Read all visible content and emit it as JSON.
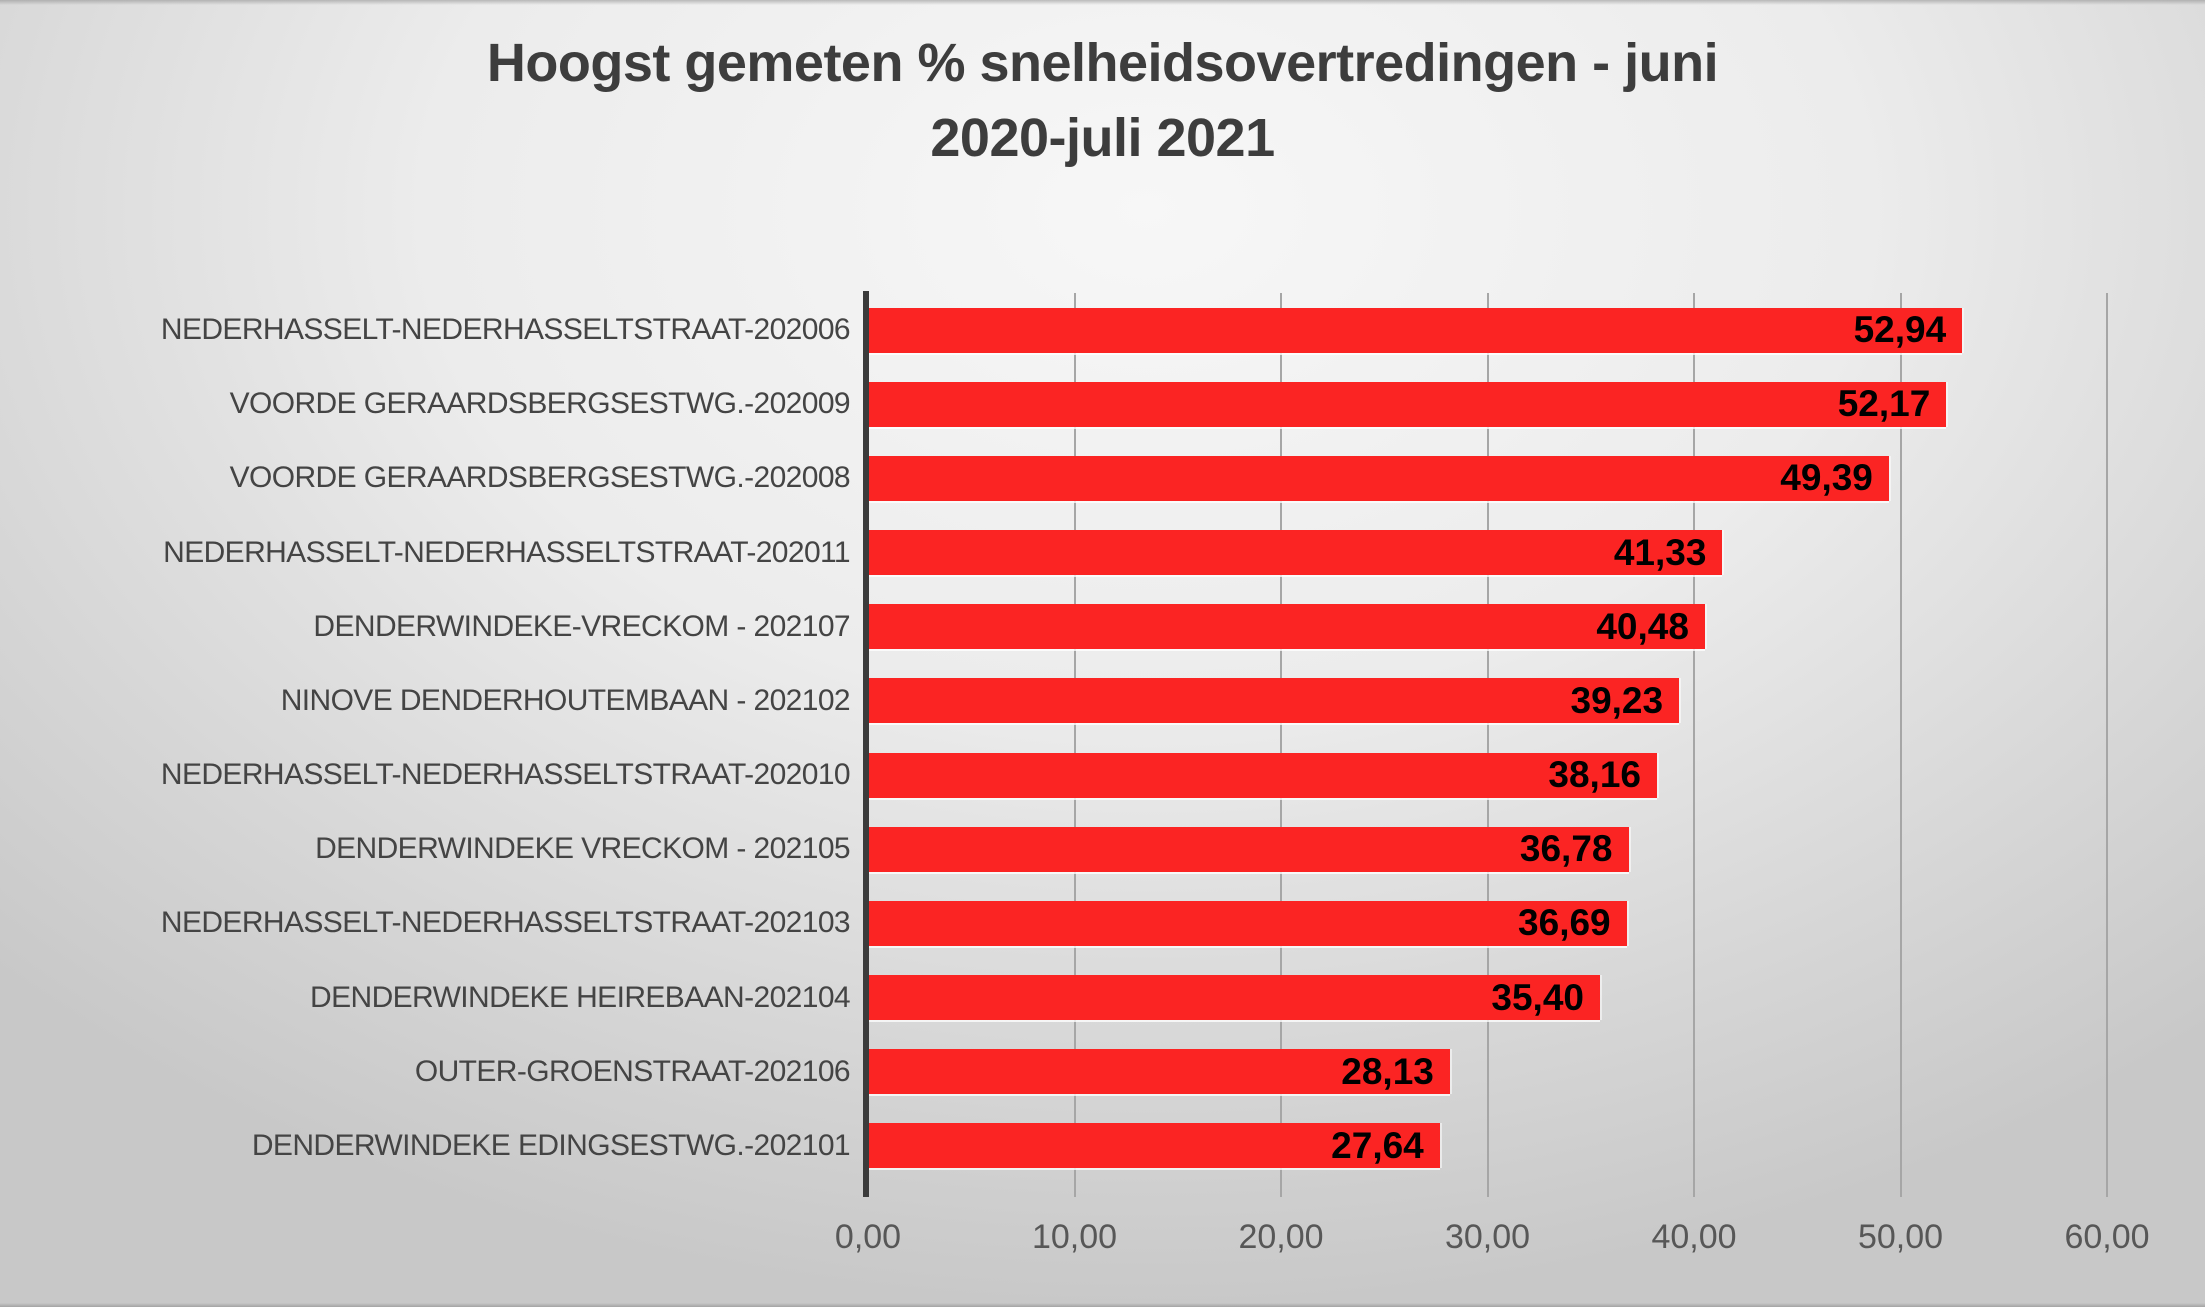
{
  "title": {
    "line1": "Hoogst gemeten % snelheidsovertredingen - juni",
    "line2": "2020-juli 2021"
  },
  "chart_data": {
    "type": "bar",
    "orientation": "horizontal",
    "title": "Hoogst gemeten % snelheidsovertredingen - juni 2020-juli 2021",
    "categories": [
      "NEDERHASSELT-NEDERHASSELTSTRAAT-202006",
      "VOORDE GERAARDSBERGSESTWG.-202009",
      "VOORDE GERAARDSBERGSESTWG.-202008",
      "NEDERHASSELT-NEDERHASSELTSTRAAT-202011",
      "DENDERWINDEKE-VRECKOM - 202107",
      "NINOVE DENDERHOUTEMBAAN - 202102",
      "NEDERHASSELT-NEDERHASSELTSTRAAT-202010",
      "DENDERWINDEKE VRECKOM - 202105",
      "NEDERHASSELT-NEDERHASSELTSTRAAT-202103",
      "DENDERWINDEKE HEIREBAAN-202104",
      "OUTER-GROENSTRAAT-202106",
      "DENDERWINDEKE EDINGSESTWG.-202101"
    ],
    "values": [
      52.94,
      52.17,
      49.39,
      41.33,
      40.48,
      39.23,
      38.16,
      36.78,
      36.69,
      35.4,
      28.13,
      27.64
    ],
    "value_labels": [
      "52,94",
      "52,17",
      "49,39",
      "41,33",
      "40,48",
      "39,23",
      "38,16",
      "36,78",
      "36,69",
      "35,40",
      "28,13",
      "27,64"
    ],
    "x_ticks": [
      "0,00",
      "10,00",
      "20,00",
      "30,00",
      "40,00",
      "50,00",
      "60,00"
    ],
    "xlim": [
      0,
      60
    ],
    "grid": true,
    "legend": false,
    "xlabel": "",
    "ylabel": "",
    "bar_color": "#fb2423",
    "value_label_color": "#000000",
    "axis_color": "#3b3b3b",
    "gridline_color": "#a6a6a6",
    "category_text_color": "#444444",
    "tick_text_color": "#575757",
    "title_color": "#3d3d3d"
  }
}
